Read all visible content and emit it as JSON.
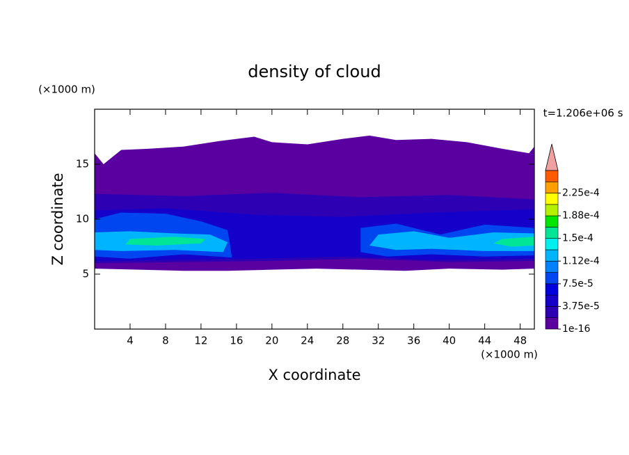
{
  "chart_data": {
    "type": "contour",
    "title": "density of cloud",
    "xlabel": "X coordinate",
    "ylabel": "Z coordinate",
    "xunit": "(×1000 m)",
    "yunit": "(×1000 m)",
    "time_label": "t=1.206e+06 s",
    "xlim": [
      0,
      49.6
    ],
    "ylim": [
      0,
      20
    ],
    "xticks": [
      4,
      8,
      12,
      16,
      20,
      24,
      28,
      32,
      36,
      40,
      44,
      48
    ],
    "yticks": [
      5,
      10,
      15
    ],
    "levels": [
      1e-16,
      1.875e-05,
      3.75e-05,
      5.625e-05,
      7.5e-05,
      9.375e-05,
      0.0001125,
      0.00013125,
      0.00015,
      0.00016875,
      0.0001875,
      0.00020625,
      0.000225,
      0.00024375
    ],
    "colors": [
      "#5a00a0",
      "#2d00b4",
      "#1400c8",
      "#0000dc",
      "#0046f0",
      "#0082ff",
      "#00b4ff",
      "#00f0f0",
      "#00e696",
      "#00e600",
      "#b4f000",
      "#ffff00",
      "#ffa000",
      "#ff5a00"
    ],
    "overflow_color": "#f0a0a0",
    "colorbar_ticks": [
      1e-16,
      {
        "value": 3.75e-05,
        "label": "3.75e-5"
      },
      {
        "value": 7.5e-05,
        "label": "7.5e-5"
      },
      {
        "value": 0.0001125,
        "label": "1.12e-4"
      },
      {
        "value": 0.00015,
        "label": "1.5e-4"
      },
      {
        "value": 0.0001875,
        "label": "1.88e-4"
      },
      {
        "value": 0.000225,
        "label": "2.25e-4"
      }
    ],
    "regions": [
      {
        "level": 1e-16,
        "x": [
          0,
          0,
          1,
          3,
          6,
          10,
          14,
          18,
          20,
          24,
          28,
          31,
          34,
          38,
          42,
          46,
          49,
          49.6,
          49.6,
          46,
          40,
          35,
          30,
          25,
          20,
          15,
          10,
          5
        ],
        "z": [
          5.5,
          16,
          15,
          16.3,
          16.4,
          16.6,
          17.1,
          17.5,
          17,
          16.8,
          17.3,
          17.6,
          17.2,
          17.3,
          17,
          16.4,
          16,
          16.6,
          5.5,
          5.4,
          5.5,
          5.3,
          5.4,
          5.5,
          5.4,
          5.3,
          5.3,
          5.4
        ]
      },
      {
        "level": 1.875e-05,
        "x": [
          0,
          0,
          10,
          20,
          30,
          40,
          49.6,
          49.6,
          40,
          30,
          20,
          10
        ],
        "z": [
          6,
          12.3,
          12.1,
          12.4,
          12,
          12.2,
          11.8,
          6.2,
          6.1,
          6.4,
          6.2,
          6.1
        ]
      },
      {
        "level": 3.75e-05,
        "x": [
          0,
          0,
          8,
          18,
          28,
          38,
          49.6,
          49.6,
          38,
          28,
          18,
          8
        ],
        "z": [
          6.2,
          10.8,
          11,
          10.4,
          10.2,
          10.6,
          10.9,
          6.4,
          6.3,
          6.6,
          6.4,
          6.3
        ]
      },
      {
        "level": 7.5e-05,
        "x": [
          0,
          0,
          3,
          8,
          12,
          15,
          15.5,
          10,
          4
        ],
        "z": [
          6.6,
          10,
          10.6,
          10.5,
          9.8,
          9,
          6.5,
          6.8,
          6.4
        ]
      },
      {
        "level": 0.0001125,
        "x": [
          0,
          0,
          4,
          9,
          13,
          15,
          14.5,
          9,
          3
        ],
        "z": [
          7.2,
          8.8,
          8.9,
          8.7,
          8.6,
          7.9,
          7,
          7.2,
          7.1
        ]
      },
      {
        "level": 0.00015,
        "x": [
          3.5,
          4,
          9,
          12.5,
          12,
          7
        ],
        "z": [
          7.7,
          8.2,
          8.4,
          8.2,
          7.8,
          7.6
        ]
      },
      {
        "level": 7.5e-05,
        "x": [
          30,
          30,
          34,
          39,
          44,
          49.6,
          49.6,
          44,
          38,
          33
        ],
        "z": [
          7,
          9.2,
          9.6,
          8.6,
          9.5,
          9.2,
          6.7,
          6.6,
          6.8,
          6.6
        ]
      },
      {
        "level": 0.0001125,
        "x": [
          31,
          32,
          36,
          40,
          45,
          49.6,
          49.6,
          44,
          38,
          34
        ],
        "z": [
          7.6,
          8.6,
          8.9,
          8.3,
          8.8,
          8.7,
          7.1,
          7.1,
          7.3,
          7.2
        ]
      },
      {
        "level": 0.00015,
        "x": [
          45,
          46,
          49.6,
          49.6,
          47
        ],
        "z": [
          7.8,
          8.2,
          8.4,
          7.6,
          7.5
        ]
      }
    ]
  }
}
